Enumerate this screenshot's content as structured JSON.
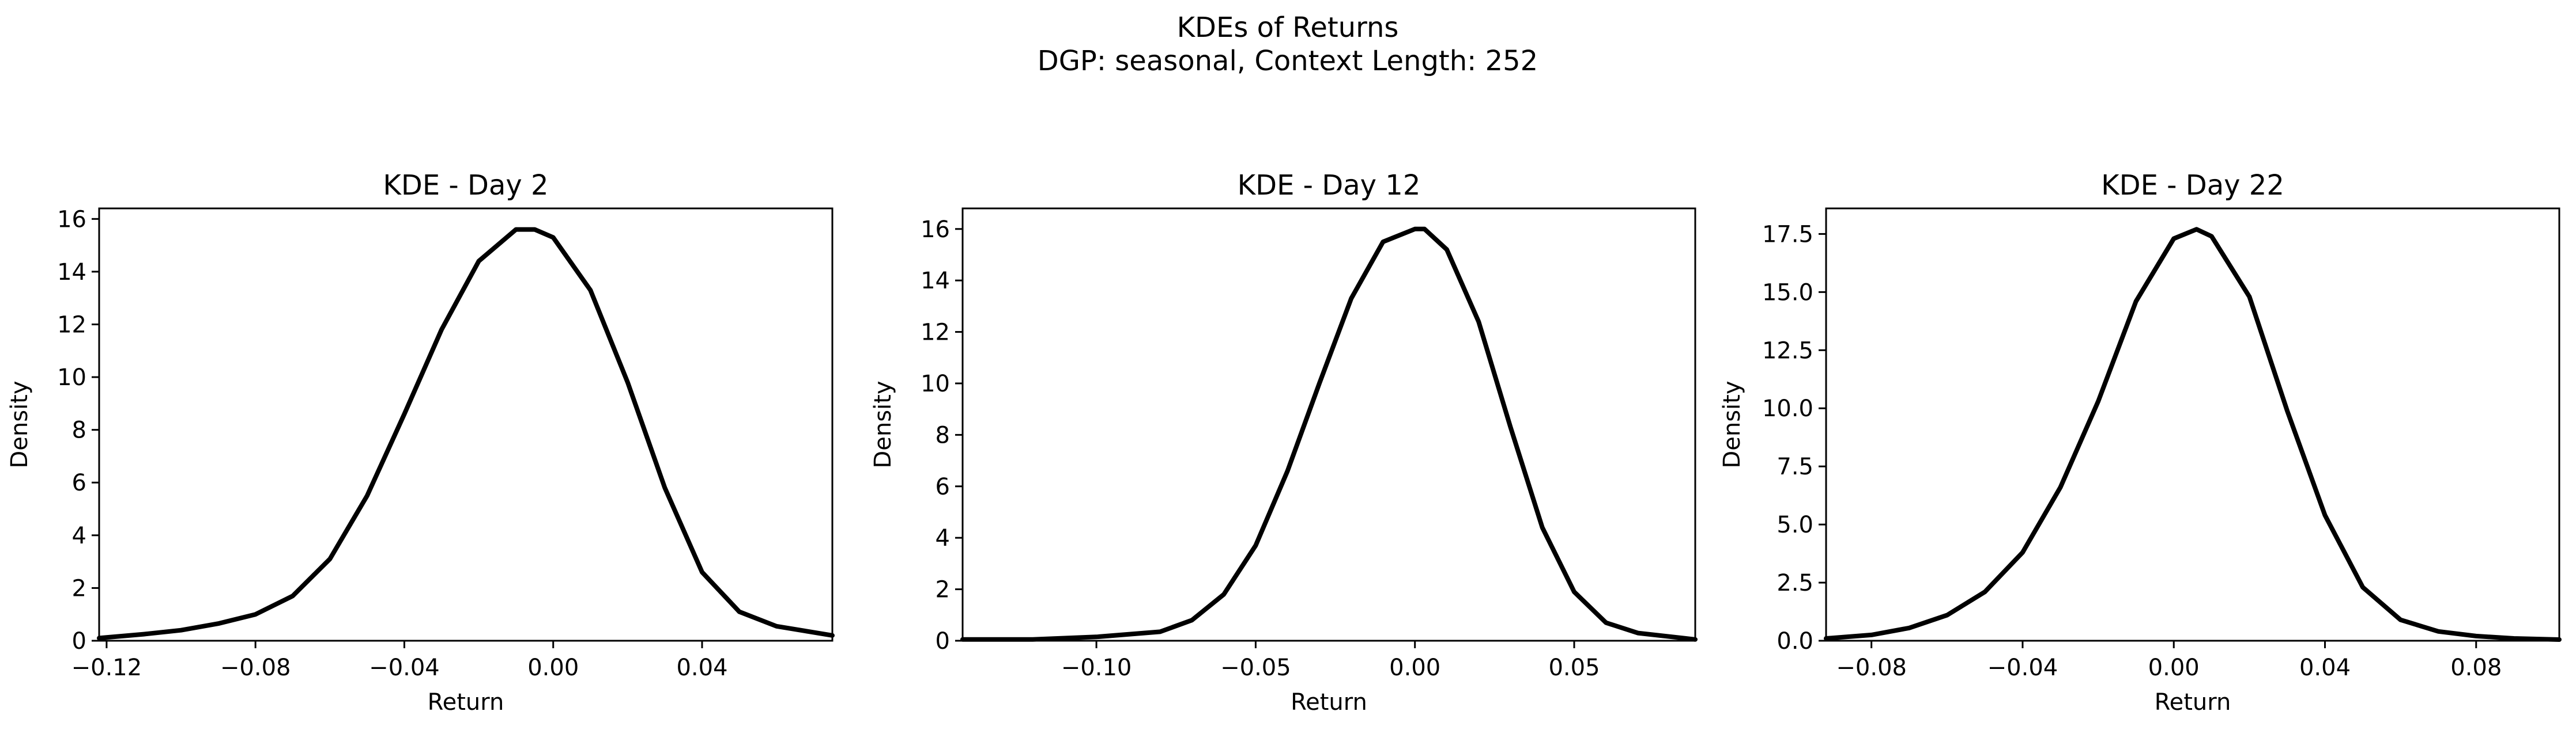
{
  "figure": {
    "title_line1": "KDEs of Returns",
    "title_line2": "DGP: seasonal, Context Length: 252"
  },
  "chart_data": [
    {
      "type": "line",
      "title": "KDE - Day 2",
      "xlabel": "Return",
      "ylabel": "Density",
      "xlim": [
        -0.122,
        0.075
      ],
      "ylim": [
        0,
        16.4
      ],
      "xticks": [
        -0.12,
        -0.08,
        -0.04,
        0.0,
        0.04
      ],
      "xtick_labels": [
        "−0.12",
        "−0.08",
        "−0.04",
        "0.00",
        "0.04"
      ],
      "yticks": [
        0,
        2,
        4,
        6,
        8,
        10,
        12,
        14,
        16
      ],
      "ytick_labels": [
        "0",
        "2",
        "4",
        "6",
        "8",
        "10",
        "12",
        "14",
        "16"
      ],
      "grid": false,
      "series": [
        {
          "color": "#000000",
          "x": [
            -0.122,
            -0.11,
            -0.1,
            -0.09,
            -0.08,
            -0.07,
            -0.06,
            -0.05,
            -0.04,
            -0.03,
            -0.02,
            -0.01,
            -0.005,
            0.0,
            0.01,
            0.02,
            0.03,
            0.04,
            0.05,
            0.06,
            0.075
          ],
          "y": [
            0.1,
            0.25,
            0.4,
            0.65,
            1.0,
            1.7,
            3.1,
            5.5,
            8.6,
            11.8,
            14.4,
            15.6,
            15.6,
            15.3,
            13.3,
            9.8,
            5.8,
            2.6,
            1.1,
            0.55,
            0.2
          ]
        }
      ]
    },
    {
      "type": "line",
      "title": "KDE - Day 12",
      "xlabel": "Return",
      "ylabel": "Density",
      "xlim": [
        -0.142,
        0.088
      ],
      "ylim": [
        0,
        16.8
      ],
      "xticks": [
        -0.1,
        -0.05,
        0.0,
        0.05
      ],
      "xtick_labels": [
        "−0.10",
        "−0.05",
        "0.00",
        "0.05"
      ],
      "yticks": [
        0,
        2,
        4,
        6,
        8,
        10,
        12,
        14,
        16
      ],
      "ytick_labels": [
        "0",
        "2",
        "4",
        "6",
        "8",
        "10",
        "12",
        "14",
        "16"
      ],
      "grid": false,
      "series": [
        {
          "color": "#000000",
          "x": [
            -0.142,
            -0.12,
            -0.1,
            -0.08,
            -0.07,
            -0.06,
            -0.05,
            -0.04,
            -0.03,
            -0.02,
            -0.01,
            0.0,
            0.003,
            0.01,
            0.02,
            0.03,
            0.04,
            0.05,
            0.06,
            0.07,
            0.088
          ],
          "y": [
            0.05,
            0.05,
            0.15,
            0.35,
            0.8,
            1.8,
            3.7,
            6.6,
            10.0,
            13.3,
            15.5,
            16.0,
            16.0,
            15.2,
            12.4,
            8.3,
            4.4,
            1.9,
            0.7,
            0.3,
            0.05
          ]
        }
      ]
    },
    {
      "type": "line",
      "title": "KDE - Day 22",
      "xlabel": "Return",
      "ylabel": "Density",
      "xlim": [
        -0.092,
        0.102
      ],
      "ylim": [
        0,
        18.6
      ],
      "xticks": [
        -0.08,
        -0.04,
        0.0,
        0.04,
        0.08
      ],
      "xtick_labels": [
        "−0.08",
        "−0.04",
        "0.00",
        "0.04",
        "0.08"
      ],
      "yticks": [
        0,
        2.5,
        5,
        7.5,
        10,
        12.5,
        15,
        17.5
      ],
      "ytick_labels": [
        "0.0",
        "2.5",
        "5.0",
        "7.5",
        "10.0",
        "12.5",
        "15.0",
        "17.5"
      ],
      "grid": false,
      "series": [
        {
          "color": "#000000",
          "x": [
            -0.092,
            -0.08,
            -0.07,
            -0.06,
            -0.05,
            -0.04,
            -0.03,
            -0.02,
            -0.01,
            0.0,
            0.006,
            0.01,
            0.02,
            0.03,
            0.04,
            0.05,
            0.06,
            0.07,
            0.08,
            0.09,
            0.102
          ],
          "y": [
            0.1,
            0.25,
            0.55,
            1.1,
            2.1,
            3.8,
            6.6,
            10.3,
            14.6,
            17.3,
            17.7,
            17.4,
            14.8,
            9.9,
            5.4,
            2.3,
            0.9,
            0.4,
            0.2,
            0.1,
            0.05
          ]
        }
      ]
    }
  ]
}
